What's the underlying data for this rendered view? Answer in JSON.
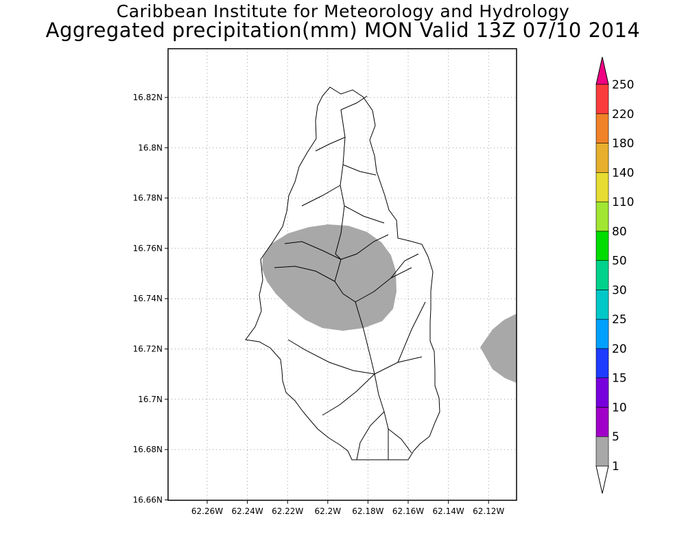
{
  "title_line1": "Caribbean Institute for Meteorology and Hydrology",
  "title_line2": "Aggregated precipitation(mm) MON Valid 13Z 07/10 2014",
  "map": {
    "lon_ticks": [
      "62.26W",
      "62.24W",
      "62.22W",
      "62.2W",
      "62.18W",
      "62.16W",
      "62.14W",
      "62.12W"
    ],
    "lat_ticks": [
      "16.82N",
      "16.8N",
      "16.78N",
      "16.76N",
      "16.74N",
      "16.72N",
      "16.7N",
      "16.68N",
      "16.66N"
    ],
    "shaded_color": "#a8a8a8",
    "shaded_class": "1-5 mm"
  },
  "colorbar": {
    "labels": [
      "1",
      "5",
      "10",
      "15",
      "20",
      "25",
      "30",
      "50",
      "80",
      "110",
      "140",
      "180",
      "220",
      "250"
    ],
    "colors": [
      "#a8a8a8",
      "#a000c8",
      "#7800dc",
      "#1e3cff",
      "#00a0ff",
      "#00c8c8",
      "#00d28c",
      "#00dc00",
      "#a0e632",
      "#e6dc32",
      "#e6af2d",
      "#f08228",
      "#fa3c3c",
      "#f00082"
    ]
  }
}
